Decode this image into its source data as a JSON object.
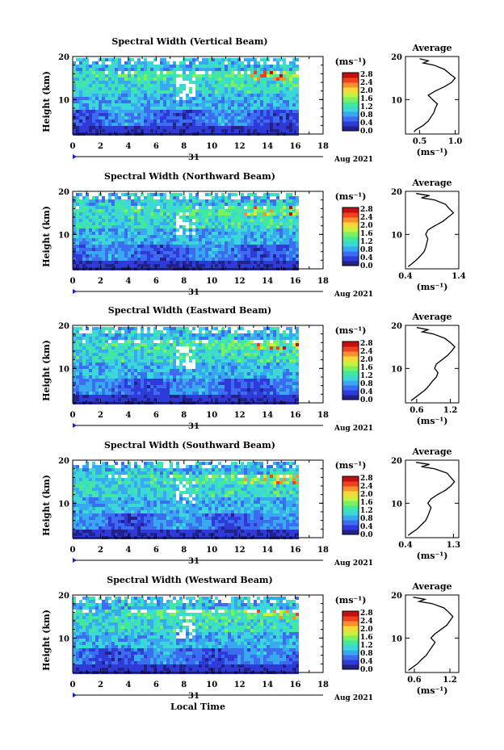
{
  "figure": {
    "xlabel_bottom": "Local Time",
    "cbar_unit_label": "(ms⁻¹)",
    "avg_title": "Average",
    "avg_xlabel": "(ms⁻¹)",
    "date_day": "31",
    "date_month": "Aug 2021",
    "height_ylabel": "Height (km)"
  },
  "colormap": [
    "#22228a",
    "#2f3bd8",
    "#3c6cf0",
    "#38a8f0",
    "#3cd8d8",
    "#40e8a0",
    "#7cf060",
    "#c8f040",
    "#f8d838",
    "#f89030",
    "#f04020",
    "#c01010"
  ],
  "chart_data": [
    {
      "type": "heatmap",
      "title": "Spectral Width (Vertical Beam)",
      "ylabel": "Height (km)",
      "x_ticks": [
        "0",
        "2",
        "4",
        "6",
        "8",
        "10",
        "12",
        "14",
        "16",
        "18"
      ],
      "y_ticks": [
        "20",
        "10"
      ],
      "xlim": [
        0,
        18
      ],
      "ylim": [
        2,
        20
      ],
      "colorbar_ticks": [
        "2.8",
        "2.4",
        "2.0",
        "1.6",
        "1.2",
        "0.8",
        "0.4",
        "0.0"
      ],
      "avg_x_ticks": [
        "0.5",
        "1.0"
      ],
      "avg_xlim": [
        0.3,
        1.05
      ],
      "avg_profile": {
        "height": [
          2.5,
          3,
          4,
          5,
          6,
          7,
          8,
          9,
          10,
          11,
          12,
          13,
          14,
          15,
          16,
          17,
          18,
          18.5,
          19,
          19.5
        ],
        "value": [
          0.42,
          0.45,
          0.55,
          0.62,
          0.66,
          0.7,
          0.72,
          0.75,
          0.68,
          0.62,
          0.72,
          0.85,
          0.95,
          1.0,
          0.92,
          0.85,
          0.7,
          0.55,
          0.62,
          0.5
        ]
      }
    },
    {
      "type": "heatmap",
      "title": "Spectral Width (Northward Beam)",
      "ylabel": "Height (km)",
      "x_ticks": [
        "0",
        "2",
        "4",
        "6",
        "8",
        "10",
        "12",
        "14",
        "16",
        "18"
      ],
      "y_ticks": [
        "20",
        "10"
      ],
      "xlim": [
        0,
        18
      ],
      "ylim": [
        2,
        20
      ],
      "colorbar_ticks": [
        "2.8",
        "2.4",
        "2.0",
        "1.6",
        "1.2",
        "0.8",
        "0.4",
        "0.0"
      ],
      "avg_x_ticks": [
        "0.4",
        "1.4"
      ],
      "avg_xlim": [
        0.4,
        1.4
      ],
      "avg_profile": {
        "height": [
          2.5,
          3,
          4,
          5,
          6,
          7,
          8,
          9,
          10,
          11,
          12,
          13,
          14,
          15,
          16,
          17,
          18,
          18.5,
          19,
          19.5
        ],
        "value": [
          0.45,
          0.5,
          0.6,
          0.68,
          0.75,
          0.78,
          0.8,
          0.82,
          0.78,
          0.82,
          0.95,
          1.1,
          1.2,
          1.3,
          1.22,
          1.15,
          0.95,
          0.7,
          0.85,
          0.6
        ]
      }
    },
    {
      "type": "heatmap",
      "title": "Spectral Width (Eastward Beam)",
      "ylabel": "Height (km)",
      "x_ticks": [
        "0",
        "2",
        "4",
        "6",
        "8",
        "10",
        "12",
        "14",
        "16",
        "18"
      ],
      "y_ticks": [
        "20",
        "10"
      ],
      "xlim": [
        0,
        18
      ],
      "ylim": [
        2,
        20
      ],
      "colorbar_ticks": [
        "2.8",
        "2.4",
        "2.0",
        "1.6",
        "1.2",
        "0.8",
        "0.4",
        "0.0"
      ],
      "avg_x_ticks": [
        "0.6",
        "1.2"
      ],
      "avg_xlim": [
        0.4,
        1.35
      ],
      "avg_profile": {
        "height": [
          2.5,
          3,
          4,
          5,
          6,
          7,
          8,
          9,
          10,
          11,
          12,
          13,
          14,
          15,
          16,
          17,
          18,
          18.5,
          19,
          19.5
        ],
        "value": [
          0.5,
          0.55,
          0.65,
          0.75,
          0.82,
          0.88,
          0.95,
          0.98,
          0.92,
          0.95,
          1.05,
          1.15,
          1.22,
          1.28,
          1.2,
          1.1,
          0.9,
          0.7,
          0.8,
          0.6
        ]
      }
    },
    {
      "type": "heatmap",
      "title": "Spectral Width (Southward Beam)",
      "ylabel": "Height (km)",
      "x_ticks": [
        "0",
        "2",
        "4",
        "6",
        "8",
        "10",
        "12",
        "14",
        "16",
        "18"
      ],
      "y_ticks": [
        "20",
        "10"
      ],
      "xlim": [
        0,
        18
      ],
      "ylim": [
        2,
        20
      ],
      "colorbar_ticks": [
        "2.8",
        "2.4",
        "2.0",
        "1.6",
        "1.2",
        "0.8",
        "0.4",
        "0.0"
      ],
      "avg_x_ticks": [
        "0.4",
        "1.3"
      ],
      "avg_xlim": [
        0.4,
        1.4
      ],
      "avg_profile": {
        "height": [
          2.5,
          3,
          4,
          5,
          6,
          7,
          8,
          9,
          10,
          11,
          12,
          13,
          14,
          15,
          16,
          17,
          18,
          18.5,
          19,
          19.5
        ],
        "value": [
          0.45,
          0.5,
          0.62,
          0.7,
          0.78,
          0.82,
          0.85,
          0.88,
          0.82,
          0.88,
          1.0,
          1.15,
          1.25,
          1.32,
          1.25,
          1.18,
          0.95,
          0.7,
          0.85,
          0.6
        ]
      }
    },
    {
      "type": "heatmap",
      "title": "Spectral Width (Westward Beam)",
      "ylabel": "Height (km)",
      "x_ticks": [
        "0",
        "2",
        "4",
        "6",
        "8",
        "10",
        "12",
        "14",
        "16",
        "18"
      ],
      "y_ticks": [
        "20",
        "10"
      ],
      "xlim": [
        0,
        18
      ],
      "ylim": [
        2,
        20
      ],
      "colorbar_ticks": [
        "2.8",
        "2.4",
        "2.0",
        "1.6",
        "1.2",
        "0.8",
        "0.4",
        "0.0"
      ],
      "avg_x_ticks": [
        "0.6",
        "1.2"
      ],
      "avg_xlim": [
        0.45,
        1.35
      ],
      "avg_profile": {
        "height": [
          2.5,
          3,
          4,
          5,
          6,
          7,
          8,
          9,
          10,
          11,
          12,
          13,
          14,
          15,
          16,
          17,
          18,
          18.5,
          19,
          19.5
        ],
        "value": [
          0.5,
          0.55,
          0.65,
          0.72,
          0.8,
          0.85,
          0.9,
          0.95,
          0.88,
          0.95,
          1.05,
          1.15,
          1.2,
          1.25,
          1.18,
          1.1,
          0.9,
          0.68,
          0.78,
          0.58
        ]
      }
    }
  ]
}
